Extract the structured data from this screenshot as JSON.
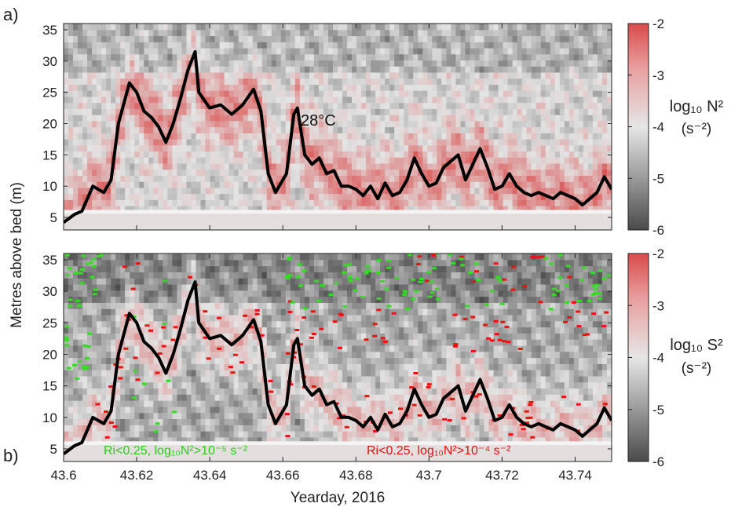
{
  "figure": {
    "xlabel": "Yearday, 2016",
    "ylabel": "Metres above bed (m)",
    "legend_green": "Ri<0.25, log₁₀N²>10⁻⁵ s⁻²",
    "legend_red": "Ri<0.25, log₁₀N²>10⁻⁴ s⁻²",
    "isotherm_label": "28°C"
  },
  "colors": {
    "isotherm": "#000000",
    "green_marker": "#33dd22",
    "red_marker": "#ee1111",
    "cmap_low": "#4a4a4a",
    "cmap_mid": "#e4e4e4",
    "cmap_high": "#d94a4a"
  },
  "chart_data": [
    {
      "type": "heatmap",
      "panel_label": "a)",
      "quantity": "N²",
      "x_ticks": [
        "43.6",
        "43.62",
        "43.64",
        "43.66",
        "43.68",
        "43.7",
        "43.72",
        "43.74"
      ],
      "y_ticks": [
        "5",
        "10",
        "15",
        "20",
        "25",
        "30",
        "35"
      ],
      "xlim": [
        43.6,
        43.75
      ],
      "ylim": [
        3,
        36
      ],
      "colorbar": {
        "title": "log₁₀ N²",
        "units": "(s⁻²)",
        "ticks": [
          "-2",
          "-3",
          "-4",
          "-5",
          "-6"
        ],
        "range": [
          -6,
          -2
        ]
      },
      "series": [
        {
          "name": "28°C",
          "x": [
            43.6,
            43.603,
            43.605,
            43.608,
            43.611,
            43.613,
            43.615,
            43.618,
            43.62,
            43.622,
            43.624,
            43.626,
            43.628,
            43.63,
            43.632,
            43.634,
            43.636,
            43.637,
            43.64,
            43.643,
            43.646,
            43.649,
            43.652,
            43.654,
            43.656,
            43.658,
            43.661,
            43.663,
            43.664,
            43.666,
            43.668,
            43.67,
            43.672,
            43.674,
            43.676,
            43.678,
            43.68,
            43.682,
            43.684,
            43.686,
            43.688,
            43.69,
            43.692,
            43.694,
            43.696,
            43.698,
            43.7,
            43.702,
            43.704,
            43.706,
            43.708,
            43.71,
            43.712,
            43.714,
            43.716,
            43.718,
            43.72,
            43.722,
            43.724,
            43.726,
            43.728,
            43.73,
            43.732,
            43.734,
            43.736,
            43.738,
            43.74,
            43.742,
            43.744,
            43.746,
            43.748,
            43.75
          ],
          "y": [
            4.2,
            5.5,
            6.0,
            10.0,
            9.0,
            11.0,
            20.0,
            26.5,
            25.0,
            22.0,
            21.0,
            19.5,
            17.0,
            20.0,
            24.0,
            28.5,
            31.5,
            25.0,
            22.5,
            23.0,
            21.5,
            23.0,
            25.5,
            22.0,
            12.0,
            9.0,
            12.0,
            21.5,
            22.5,
            15.0,
            13.5,
            14.5,
            12.0,
            12.5,
            10.0,
            10.0,
            9.5,
            8.5,
            10.0,
            8.0,
            10.5,
            8.5,
            9.0,
            11.0,
            14.5,
            12.0,
            10.0,
            10.5,
            13.0,
            14.0,
            15.0,
            11.0,
            13.5,
            16.0,
            13.0,
            9.5,
            10.0,
            12.0,
            10.0,
            9.0,
            8.5,
            9.0,
            8.5,
            8.0,
            9.0,
            8.5,
            8.0,
            7.0,
            8.0,
            9.0,
            11.5,
            9.5
          ]
        }
      ]
    },
    {
      "type": "heatmap",
      "panel_label": "b)",
      "quantity": "S²",
      "x_ticks": [
        "43.6",
        "43.62",
        "43.64",
        "43.66",
        "43.68",
        "43.7",
        "43.72",
        "43.74"
      ],
      "y_ticks": [
        "5",
        "10",
        "15",
        "20",
        "25",
        "30",
        "35"
      ],
      "xlim": [
        43.6,
        43.75
      ],
      "ylim": [
        3,
        36
      ],
      "colorbar": {
        "title": "log₁₀ S²",
        "units": "(s⁻²)",
        "ticks": [
          "-2",
          "-3",
          "-4",
          "-5",
          "-6"
        ],
        "range": [
          -6,
          -2
        ]
      },
      "series": [
        {
          "x": [
            43.6,
            43.603,
            43.605,
            43.608,
            43.611,
            43.613,
            43.615,
            43.618,
            43.62,
            43.622,
            43.624,
            43.626,
            43.628,
            43.63,
            43.632,
            43.634,
            43.636,
            43.637,
            43.64,
            43.643,
            43.646,
            43.649,
            43.652,
            43.654,
            43.656,
            43.658,
            43.661,
            43.663,
            43.664,
            43.666,
            43.668,
            43.67,
            43.672,
            43.674,
            43.676,
            43.678,
            43.68,
            43.682,
            43.684,
            43.686,
            43.688,
            43.69,
            43.692,
            43.694,
            43.696,
            43.698,
            43.7,
            43.702,
            43.704,
            43.706,
            43.708,
            43.71,
            43.712,
            43.714,
            43.716,
            43.718,
            43.72,
            43.722,
            43.724,
            43.726,
            43.728,
            43.73,
            43.732,
            43.734,
            43.736,
            43.738,
            43.74,
            43.742,
            43.744,
            43.746,
            43.748,
            43.75
          ],
          "y": [
            4.2,
            5.5,
            6.0,
            10.0,
            9.0,
            11.0,
            20.0,
            26.5,
            25.0,
            22.0,
            21.0,
            19.5,
            17.0,
            20.0,
            24.0,
            28.5,
            31.5,
            25.0,
            22.5,
            23.0,
            21.5,
            23.0,
            25.5,
            22.0,
            12.0,
            9.0,
            12.0,
            21.5,
            22.5,
            15.0,
            13.5,
            14.5,
            12.0,
            12.5,
            10.0,
            10.0,
            9.5,
            8.5,
            10.0,
            8.0,
            10.5,
            8.5,
            9.0,
            11.0,
            14.5,
            12.0,
            10.0,
            10.5,
            13.0,
            14.0,
            15.0,
            11.0,
            13.5,
            16.0,
            13.0,
            9.5,
            10.0,
            12.0,
            10.0,
            9.0,
            8.5,
            9.0,
            8.5,
            8.0,
            9.0,
            8.5,
            8.0,
            7.0,
            8.0,
            9.0,
            11.5,
            9.5
          ]
        }
      ]
    }
  ]
}
